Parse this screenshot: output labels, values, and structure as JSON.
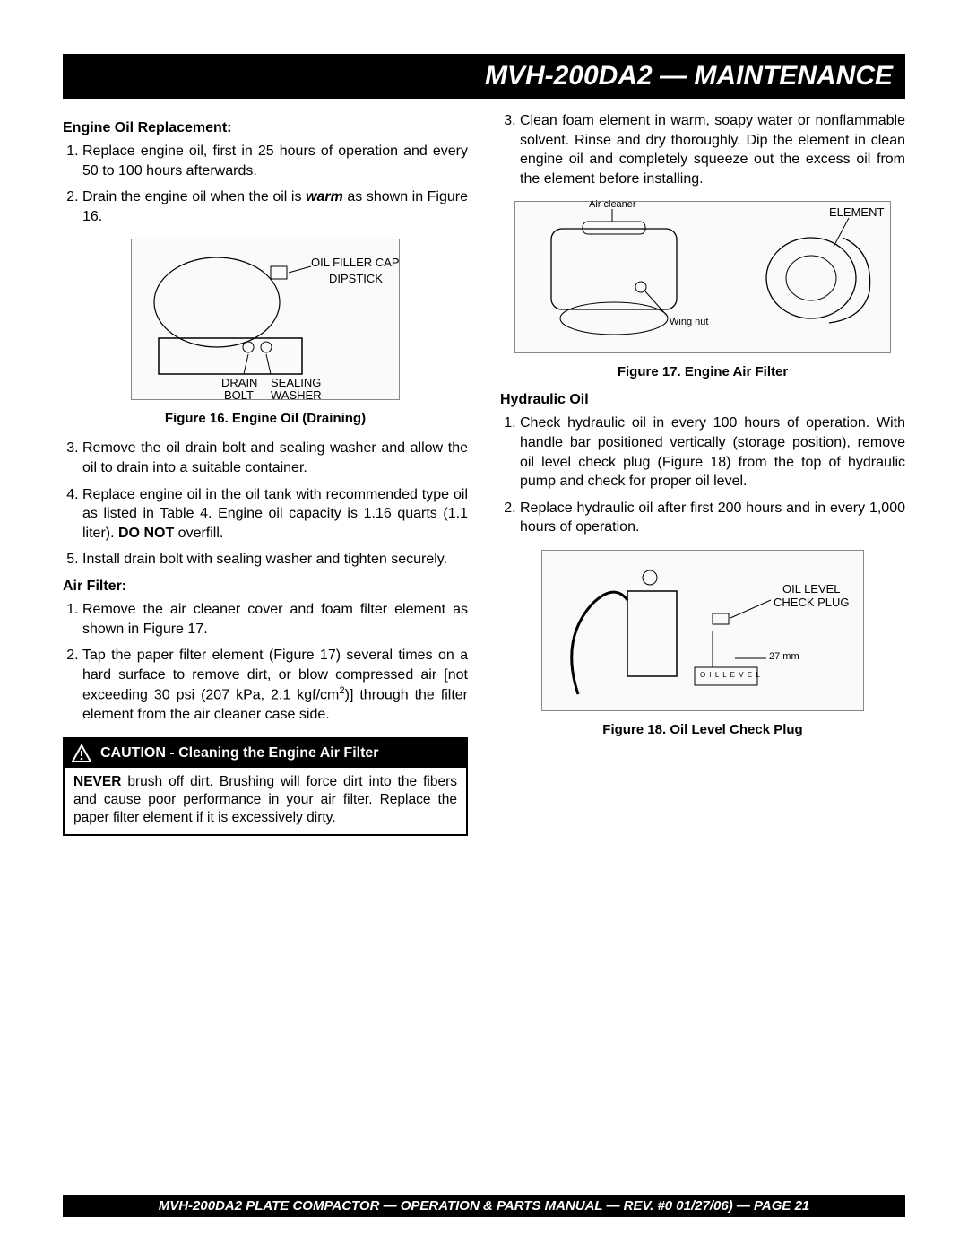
{
  "header": {
    "title": "MVH-200DA2 — MAINTENANCE"
  },
  "left": {
    "section1_title": "Engine Oil Replacement:",
    "oil_steps_a": [
      "Replace engine oil, first in 25 hours of operation and every 50 to 100 hours afterwards.",
      "Drain the engine oil when the oil is <b><i>warm</i></b> as shown in Figure 16."
    ],
    "fig16": {
      "caption": "Figure 16.  Engine Oil (Draining)",
      "labels": {
        "oil_filler_cap": "OIL FILLER CAP",
        "dipstick": "DIPSTICK",
        "drain": "DRAIN",
        "bolt": "BOLT",
        "sealing": "SEALING",
        "washer": "WASHER"
      }
    },
    "oil_steps_b": [
      "Remove the oil drain bolt and sealing washer and allow the oil to drain into a suitable container.",
      "Replace engine oil in the oil tank with recommended type oil as listed in Table 4. Engine oil capacity is 1.16 quarts (1.1 liter). <b>DO NOT</b> overfill.",
      "Install drain bolt with sealing washer and tighten securely."
    ],
    "section2_title": "Air Filter:",
    "air_steps": [
      "Remove the air cleaner cover and foam filter element as shown in Figure 17.",
      "Tap the paper filter element (Figure 17) several times on a hard surface to remove dirt, or blow compressed air [not exceeding 30 psi (207 kPa, 2.1 kgf/cm<span class=\"sup\">2</span>)] through the filter element from the air cleaner case side."
    ],
    "caution": {
      "title": "CAUTION - Cleaning the Engine Air Filter",
      "body": "<b>NEVER</b> brush off dirt. Brushing will force dirt into the fibers and cause poor performance in your air filter. Replace the paper filter element if it is excessively dirty."
    }
  },
  "right": {
    "step3": "Clean foam element in warm, soapy water or nonflammable solvent.  Rinse and dry thoroughly.  Dip the element in clean engine oil and completely squeeze out the excess oil from the element before installing.",
    "fig17": {
      "caption": "Figure  17.  Engine Air Filter",
      "labels": {
        "air_cleaner": "Air cleaner",
        "wing_nut": "Wing nut",
        "element": "ELEMENT"
      }
    },
    "section3_title": "Hydraulic  Oil",
    "hyd_steps": [
      "Check hydraulic oil in every 100 hours of operation.  With handle bar positioned vertically (storage position), remove oil level check  plug (Figure 18) from the top of hydraulic pump and check for proper oil level.",
      "Replace hydraulic oil after first 200 hours and in every 1,000 hours of operation."
    ],
    "fig18": {
      "caption": "Figure 18.  Oil Level Check Plug",
      "labels": {
        "oil_level_check_plug": "OIL LEVEL\nCHECK PLUG",
        "dim": "27 mm",
        "oil_level": "O I L   L E V E L"
      }
    }
  },
  "footer": {
    "text": "MVH-200DA2 PLATE COMPACTOR — OPERATION & PARTS  MANUAL — REV. #0  01/27/06) — PAGE 21"
  }
}
